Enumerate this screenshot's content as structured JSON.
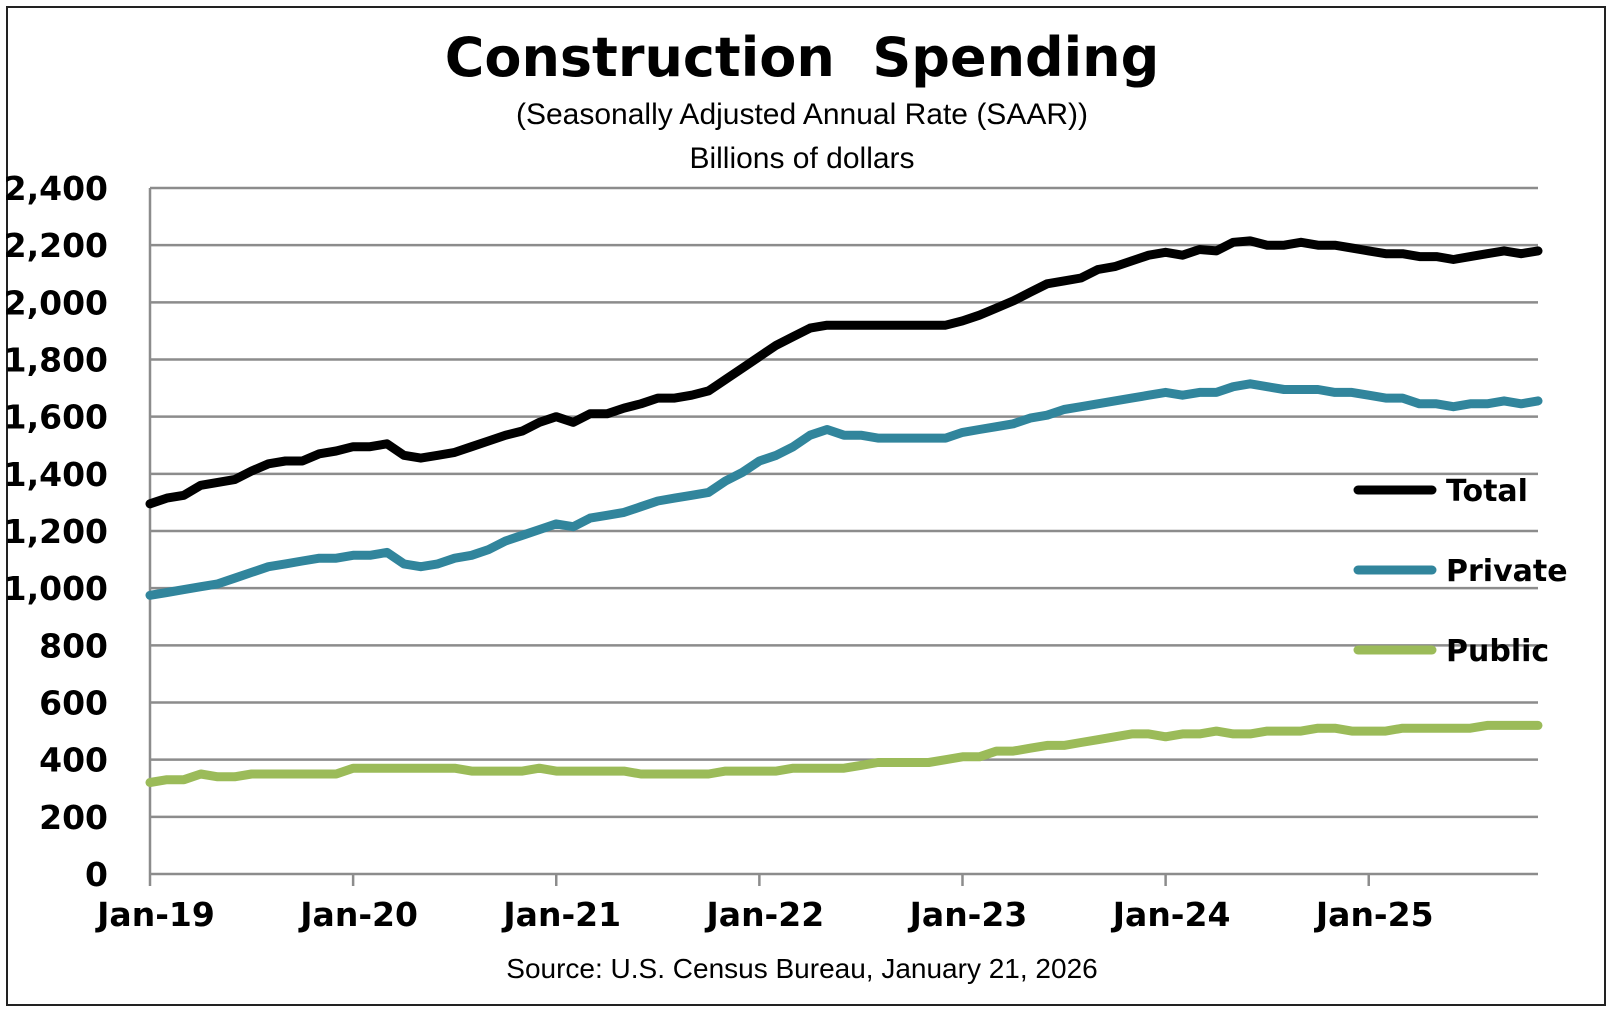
{
  "chart_data": {
    "type": "line",
    "title": "Construction  Spending",
    "subtitle": "(Seasonally Adjusted Annual Rate (SAAR))",
    "subtitle2": "Billions of dollars",
    "source": "Source: U.S. Census Bureau, January 21, 2026",
    "ylim": [
      0,
      2400
    ],
    "yticks": [
      0,
      200,
      400,
      600,
      800,
      1000,
      1200,
      1400,
      1600,
      1800,
      2000,
      2200,
      2400
    ],
    "ytick_labels": [
      "0",
      "200",
      "400",
      "600",
      "800",
      "1,000",
      "1,200",
      "1,400",
      "1,600",
      "1,800",
      "2,000",
      "2,200",
      "2,400"
    ],
    "x_start": "Jan-19",
    "x_end": "Oct-25",
    "xtick_labels": [
      "Jan-19",
      "Jan-20",
      "Jan-21",
      "Jan-22",
      "Jan-23",
      "Jan-24",
      "Jan-25"
    ],
    "grid": true,
    "legend_position": "right",
    "series": [
      {
        "name": "Total",
        "color": "#000000",
        "values": [
          1295,
          1315,
          1325,
          1360,
          1370,
          1380,
          1410,
          1435,
          1445,
          1445,
          1470,
          1480,
          1495,
          1495,
          1505,
          1465,
          1455,
          1465,
          1475,
          1495,
          1515,
          1535,
          1550,
          1580,
          1600,
          1580,
          1610,
          1610,
          1630,
          1645,
          1665,
          1665,
          1675,
          1690,
          1730,
          1770,
          1810,
          1850,
          1880,
          1910,
          1920,
          1920,
          1920,
          1920,
          1920,
          1920,
          1920,
          1920,
          1935,
          1955,
          1980,
          2005,
          2035,
          2065,
          2075,
          2085,
          2115,
          2125,
          2145,
          2165,
          2175,
          2165,
          2185,
          2180,
          2210,
          2215,
          2200,
          2200,
          2210,
          2200,
          2200,
          2190,
          2180,
          2170,
          2170,
          2160,
          2160,
          2150,
          2160,
          2170,
          2180,
          2170,
          2180
        ]
      },
      {
        "name": "Private",
        "color": "#31859C",
        "values": [
          975,
          985,
          995,
          1005,
          1015,
          1035,
          1055,
          1075,
          1085,
          1095,
          1105,
          1105,
          1115,
          1115,
          1125,
          1085,
          1075,
          1085,
          1105,
          1115,
          1135,
          1165,
          1185,
          1205,
          1225,
          1215,
          1245,
          1255,
          1265,
          1285,
          1305,
          1315,
          1325,
          1335,
          1375,
          1405,
          1445,
          1465,
          1495,
          1535,
          1555,
          1535,
          1535,
          1525,
          1525,
          1525,
          1525,
          1525,
          1545,
          1555,
          1565,
          1575,
          1595,
          1605,
          1625,
          1635,
          1645,
          1655,
          1665,
          1675,
          1685,
          1675,
          1685,
          1685,
          1705,
          1715,
          1705,
          1695,
          1695,
          1695,
          1685,
          1685,
          1675,
          1665,
          1665,
          1645,
          1645,
          1635,
          1645,
          1645,
          1655,
          1645,
          1655
        ]
      },
      {
        "name": "Public",
        "color": "#9BBB59",
        "values": [
          320,
          330,
          330,
          350,
          340,
          340,
          350,
          350,
          350,
          350,
          350,
          350,
          370,
          370,
          370,
          370,
          370,
          370,
          370,
          360,
          360,
          360,
          360,
          370,
          360,
          360,
          360,
          360,
          360,
          350,
          350,
          350,
          350,
          350,
          360,
          360,
          360,
          360,
          370,
          370,
          370,
          370,
          380,
          390,
          390,
          390,
          390,
          400,
          410,
          410,
          430,
          430,
          440,
          450,
          450,
          460,
          470,
          480,
          490,
          490,
          480,
          490,
          490,
          500,
          490,
          490,
          500,
          500,
          500,
          510,
          510,
          500,
          500,
          500,
          510,
          510,
          510,
          510,
          510,
          520,
          520,
          520,
          520
        ]
      }
    ]
  }
}
